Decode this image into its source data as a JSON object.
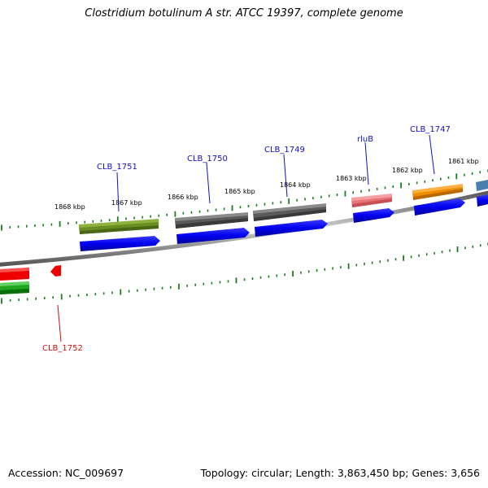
{
  "title": "Clostridium botulinum A str. ATCC 19397, complete genome",
  "footer": {
    "accession": "Accession: NC_009697",
    "topology": "Topology: circular;",
    "length": "Length: 3,863,450 bp;",
    "genes": "Genes: 3,656"
  },
  "colors": {
    "backbone": "#7a7a7a",
    "tick": "#1e7b1e",
    "label_forward": "#1010c0",
    "label_reverse": "#cc1010",
    "cds": "#0000ee"
  },
  "scale_labels": [
    "1868 kbp",
    "1867 kbp",
    "1866 kbp",
    "1865 kbp",
    "1864 kbp",
    "1863 kbp",
    "1862 kbp",
    "1861 kbp"
  ],
  "genes": [
    {
      "name": "CLB_1751",
      "strand": "forward",
      "color": "#6b8e23"
    },
    {
      "name": "CLB_1750",
      "strand": "forward",
      "color": "#5a5a5a"
    },
    {
      "name": "CLB_1749",
      "strand": "forward",
      "color": "#5a5a5a"
    },
    {
      "name": "rluB",
      "strand": "forward",
      "color": "#e87478"
    },
    {
      "name": "CLB_1747",
      "strand": "forward",
      "color": "#f08c00"
    },
    {
      "name": "CLB_1752",
      "strand": "reverse",
      "color": "#ee0000"
    }
  ]
}
